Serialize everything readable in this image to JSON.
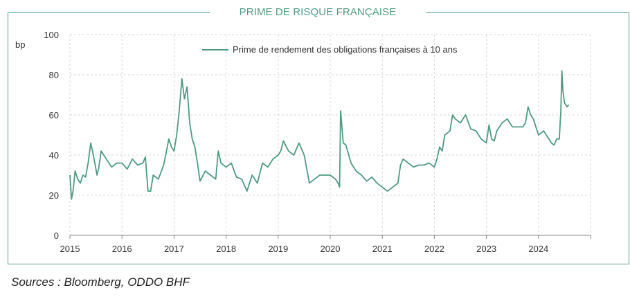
{
  "header": {
    "title": "PRIME DE RISQUE FRANÇAISE"
  },
  "footer": {
    "source": "Sources : Bloomberg, ODDO BHF"
  },
  "colors": {
    "series": "#4f9a83",
    "frame": "#5a9f8a",
    "grid": "#d8d8d8"
  },
  "chart_data": {
    "type": "line",
    "title": "PRIME DE RISQUE FRANÇAISE",
    "ylabel": "bp",
    "xlabel": "",
    "ylim": [
      0,
      100
    ],
    "xlim": [
      2015,
      2025
    ],
    "y_ticks": [
      "0",
      "20",
      "40",
      "60",
      "80",
      "100"
    ],
    "x_ticks": [
      "2015",
      "2016",
      "2017",
      "2018",
      "2019",
      "2020",
      "2021",
      "2022",
      "2023",
      "2024"
    ],
    "grid": true,
    "legend_position": "top-center",
    "series": [
      {
        "name": "Prime de rendement des obligations françaises à 10 ans",
        "x": [
          2015.0,
          2015.03,
          2015.06,
          2015.1,
          2015.15,
          2015.2,
          2015.25,
          2015.3,
          2015.35,
          2015.4,
          2015.45,
          2015.5,
          2015.52,
          2015.55,
          2015.6,
          2015.65,
          2015.7,
          2015.8,
          2015.9,
          2016.0,
          2016.1,
          2016.2,
          2016.3,
          2016.4,
          2016.45,
          2016.5,
          2016.55,
          2016.6,
          2016.7,
          2016.8,
          2016.9,
          2016.95,
          2017.0,
          2017.05,
          2017.1,
          2017.15,
          2017.2,
          2017.25,
          2017.3,
          2017.35,
          2017.4,
          2017.45,
          2017.5,
          2017.6,
          2017.7,
          2017.8,
          2017.85,
          2017.9,
          2018.0,
          2018.1,
          2018.2,
          2018.3,
          2018.4,
          2018.5,
          2018.6,
          2018.7,
          2018.8,
          2018.9,
          2019.0,
          2019.05,
          2019.1,
          2019.2,
          2019.3,
          2019.4,
          2019.5,
          2019.6,
          2019.7,
          2019.8,
          2019.9,
          2020.0,
          2020.1,
          2020.15,
          2020.18,
          2020.2,
          2020.25,
          2020.3,
          2020.4,
          2020.5,
          2020.6,
          2020.7,
          2020.8,
          2020.9,
          2021.0,
          2021.1,
          2021.2,
          2021.3,
          2021.35,
          2021.4,
          2021.5,
          2021.6,
          2021.7,
          2021.8,
          2021.9,
          2022.0,
          2022.05,
          2022.1,
          2022.15,
          2022.2,
          2022.3,
          2022.35,
          2022.4,
          2022.5,
          2022.6,
          2022.7,
          2022.8,
          2022.9,
          2023.0,
          2023.05,
          2023.1,
          2023.15,
          2023.2,
          2023.3,
          2023.4,
          2023.5,
          2023.6,
          2023.7,
          2023.75,
          2023.8,
          2023.85,
          2023.9,
          2024.0,
          2024.1,
          2024.2,
          2024.25,
          2024.3,
          2024.35,
          2024.4,
          2024.43,
          2024.45,
          2024.47,
          2024.5,
          2024.55,
          2024.58
        ],
        "values": [
          30,
          18,
          22,
          32,
          28,
          26,
          30,
          29,
          36,
          46,
          40,
          33,
          30,
          33,
          42,
          40,
          38,
          34,
          36,
          36,
          33,
          38,
          35,
          36,
          39,
          22,
          22,
          30,
          28,
          35,
          48,
          44,
          42,
          50,
          62,
          78,
          68,
          74,
          56,
          48,
          44,
          36,
          27,
          32,
          30,
          28,
          42,
          36,
          34,
          36,
          29,
          28,
          22,
          30,
          26,
          36,
          34,
          38,
          40,
          42,
          47,
          42,
          40,
          46,
          40,
          26,
          28,
          30,
          30,
          30,
          28,
          26,
          24,
          62,
          46,
          45,
          36,
          32,
          30,
          27,
          29,
          26,
          24,
          22,
          24,
          26,
          35,
          38,
          36,
          34,
          35,
          35,
          36,
          34,
          38,
          44,
          42,
          50,
          52,
          60,
          58,
          56,
          60,
          53,
          52,
          48,
          46,
          55,
          48,
          47,
          52,
          56,
          58,
          54,
          54,
          54,
          56,
          64,
          60,
          58,
          50,
          52,
          48,
          46,
          45,
          48,
          48,
          62,
          82,
          72,
          66,
          64,
          65
        ]
      }
    ]
  }
}
